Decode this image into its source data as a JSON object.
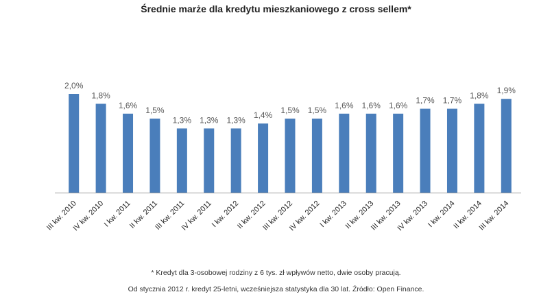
{
  "chart_data": {
    "type": "bar",
    "title": "Średnie marże dla kredytu mieszkaniowego z cross sellem*",
    "categories": [
      "III kw. 2010",
      "IV kw. 2010",
      "I kw. 2011",
      "II kw. 2011",
      "III kw. 2011",
      "IV kw. 2011",
      "I kw. 2012",
      "II kw. 2012",
      "III kw. 2012",
      "IV kw. 2012",
      "I kw. 2013",
      "II kw. 2013",
      "III kw. 2013",
      "IV kw. 2013",
      "I kw. 2014",
      "II kw. 2014",
      "III kw. 2014"
    ],
    "values": [
      2.0,
      1.8,
      1.6,
      1.5,
      1.3,
      1.3,
      1.3,
      1.4,
      1.5,
      1.5,
      1.6,
      1.6,
      1.6,
      1.7,
      1.7,
      1.8,
      1.9
    ],
    "value_labels": [
      "2,0%",
      "1,8%",
      "1,6%",
      "1,5%",
      "1,3%",
      "1,3%",
      "1,3%",
      "1,4%",
      "1,5%",
      "1,5%",
      "1,6%",
      "1,6%",
      "1,6%",
      "1,7%",
      "1,7%",
      "1,8%",
      "1,9%"
    ],
    "ylim": [
      0,
      2.0
    ],
    "grid": false,
    "legend": "none",
    "bar_color": "#4a7ebb",
    "footnotes": [
      "* Kredyt dla 3-osobowej rodziny z 6 tys. zł wpływów netto, dwie osoby pracują.",
      "Od stycznia 2012 r. kredyt 25-letni, wcześniejsza statystyka dla 30 lat. Źródło: Open Finance."
    ]
  }
}
